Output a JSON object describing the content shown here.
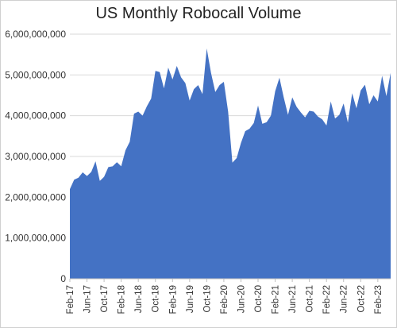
{
  "chart_data": {
    "type": "area",
    "title": "US Monthly Robocall Volume",
    "xlabel": "",
    "ylabel": "",
    "ylim": [
      0,
      6000000000
    ],
    "y_ticks": [
      {
        "value": 0,
        "label": "0"
      },
      {
        "value": 1000000000,
        "label": "1,000,000,000"
      },
      {
        "value": 2000000000,
        "label": "2,000,000,000"
      },
      {
        "value": 3000000000,
        "label": "3,000,000,000"
      },
      {
        "value": 4000000000,
        "label": "4,000,000,000"
      },
      {
        "value": 5000000000,
        "label": "5,000,000,000"
      },
      {
        "value": 6000000000,
        "label": "6,000,000,000"
      }
    ],
    "x_tick_labels": [
      "Feb-17",
      "Jun-17",
      "Oct-17",
      "Feb-18",
      "Jun-18",
      "Oct-18",
      "Feb-19",
      "Jun-19",
      "Oct-19",
      "Feb-20",
      "Jun-20",
      "Oct-20",
      "Feb-21",
      "Jun-21",
      "Oct-21",
      "Feb-22",
      "Jun-22",
      "Oct-22",
      "Feb-23"
    ],
    "x": [
      "Feb-17",
      "Mar-17",
      "Apr-17",
      "May-17",
      "Jun-17",
      "Jul-17",
      "Aug-17",
      "Sep-17",
      "Oct-17",
      "Nov-17",
      "Dec-17",
      "Jan-18",
      "Feb-18",
      "Mar-18",
      "Apr-18",
      "May-18",
      "Jun-18",
      "Jul-18",
      "Aug-18",
      "Sep-18",
      "Oct-18",
      "Nov-18",
      "Dec-18",
      "Jan-19",
      "Feb-19",
      "Mar-19",
      "Apr-19",
      "May-19",
      "Jun-19",
      "Jul-19",
      "Aug-19",
      "Sep-19",
      "Oct-19",
      "Nov-19",
      "Dec-19",
      "Jan-20",
      "Feb-20",
      "Mar-20",
      "Apr-20",
      "May-20",
      "Jun-20",
      "Jul-20",
      "Aug-20",
      "Sep-20",
      "Oct-20",
      "Nov-20",
      "Dec-20",
      "Jan-21",
      "Feb-21",
      "Mar-21",
      "Apr-21",
      "May-21",
      "Jun-21",
      "Jul-21",
      "Aug-21",
      "Sep-21",
      "Oct-21",
      "Nov-21",
      "Dec-21",
      "Jan-22",
      "Feb-22",
      "Mar-22",
      "Apr-22",
      "May-22",
      "Jun-22",
      "Jul-22",
      "Aug-22",
      "Sep-22",
      "Oct-22",
      "Nov-22",
      "Dec-22",
      "Jan-23",
      "Feb-23",
      "Mar-23",
      "Apr-23",
      "May-23"
    ],
    "values": [
      2200000000,
      2430000000,
      2480000000,
      2610000000,
      2520000000,
      2620000000,
      2880000000,
      2400000000,
      2500000000,
      2740000000,
      2760000000,
      2860000000,
      2760000000,
      3150000000,
      3360000000,
      4050000000,
      4100000000,
      4000000000,
      4230000000,
      4420000000,
      5100000000,
      5070000000,
      4670000000,
      5180000000,
      4890000000,
      5220000000,
      4940000000,
      4800000000,
      4370000000,
      4650000000,
      4750000000,
      4530000000,
      5650000000,
      5050000000,
      4580000000,
      4750000000,
      4830000000,
      4100000000,
      2850000000,
      2960000000,
      3330000000,
      3620000000,
      3680000000,
      3820000000,
      4250000000,
      3800000000,
      3840000000,
      4000000000,
      4600000000,
      4930000000,
      4450000000,
      4020000000,
      4450000000,
      4220000000,
      4080000000,
      3960000000,
      4120000000,
      4100000000,
      3980000000,
      3910000000,
      3760000000,
      4350000000,
      3930000000,
      4020000000,
      4300000000,
      3830000000,
      4550000000,
      4180000000,
      4620000000,
      4760000000,
      4280000000,
      4500000000,
      4350000000,
      4980000000,
      4480000000,
      5050000000
    ],
    "series_color": "#4472c4",
    "grid": "horizontal"
  }
}
